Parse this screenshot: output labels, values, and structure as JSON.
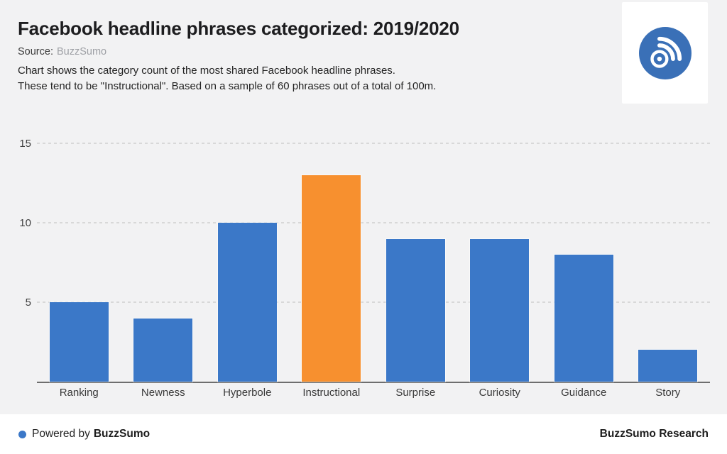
{
  "header": {
    "title": "Facebook headline phrases categorized: 2019/2020",
    "source_label": "Source:",
    "source_value": "BuzzSumo",
    "description_line1": "Chart shows the category count of the most shared Facebook headline phrases.",
    "description_line2": "These tend to be \"Instructional\". Based on a sample of 60 phrases out of a total of 100m."
  },
  "logo": {
    "name": "buzzsumo-rss-logo",
    "circle_color": "#3a70b7",
    "glyph_color": "#ffffff"
  },
  "chart_data": {
    "type": "bar",
    "title": "Facebook headline phrases categorized: 2019/2020",
    "categories": [
      "Ranking",
      "Newness",
      "Hyperbole",
      "Instructional",
      "Surprise",
      "Curiosity",
      "Guidance",
      "Story"
    ],
    "values": [
      5,
      4,
      10,
      13,
      9,
      9,
      8,
      2
    ],
    "highlight_index": 3,
    "bar_color": "#3b78c8",
    "highlight_color": "#f7902f",
    "yticks": [
      5,
      10,
      15
    ],
    "ylim": [
      0,
      16
    ],
    "xlabel": "",
    "ylabel": "",
    "grid": "horizontal-dashed",
    "grid_color": "#d8d8d8",
    "axis_color": "#6e6e6e",
    "background_color": "#f2f2f3"
  },
  "footer": {
    "powered_prefix": "Powered by",
    "powered_brand": "BuzzSumo",
    "research_label": "BuzzSumo Research",
    "dot_color": "#3b78c8"
  }
}
